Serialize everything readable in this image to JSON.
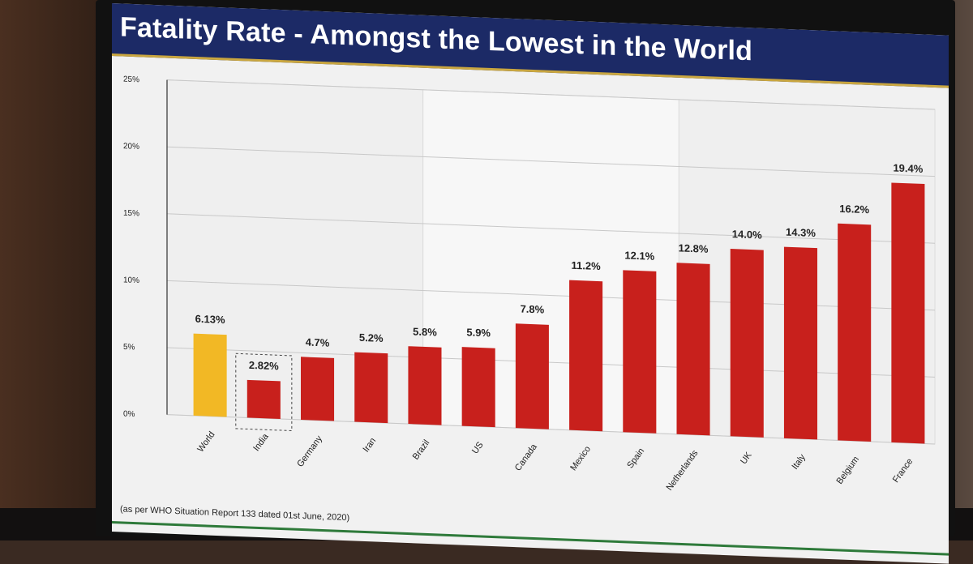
{
  "chart_data": {
    "type": "bar",
    "title": "Fatality Rate - Amongst the Lowest in the World",
    "xlabel": "",
    "ylabel": "",
    "ylim": [
      0,
      25
    ],
    "yticks": [
      0,
      5,
      10,
      15,
      20,
      25
    ],
    "ytick_labels": [
      "0%",
      "5%",
      "10%",
      "15%",
      "20%",
      "25%"
    ],
    "categories": [
      "World",
      "India",
      "Germany",
      "Iran",
      "Brazil",
      "US",
      "Canada",
      "Mexico",
      "Spain",
      "Netherlands",
      "UK",
      "Italy",
      "Belgium",
      "France"
    ],
    "values": [
      6.13,
      2.82,
      4.7,
      5.2,
      5.8,
      5.9,
      7.8,
      11.2,
      12.1,
      12.8,
      14.0,
      14.3,
      16.2,
      19.4
    ],
    "value_labels": [
      "6.13%",
      "2.82%",
      "4.7%",
      "5.2%",
      "5.8%",
      "5.9%",
      "7.8%",
      "11.2%",
      "12.1%",
      "12.8%",
      "14.0%",
      "14.3%",
      "16.2%",
      "19.4%"
    ],
    "highlight": {
      "World": "#f2b825",
      "India": "boxed"
    },
    "colors": {
      "default": "#c8201c",
      "world": "#f2b825"
    },
    "footnote": "(as per WHO Situation Report 133 dated 01st June, 2020)"
  }
}
